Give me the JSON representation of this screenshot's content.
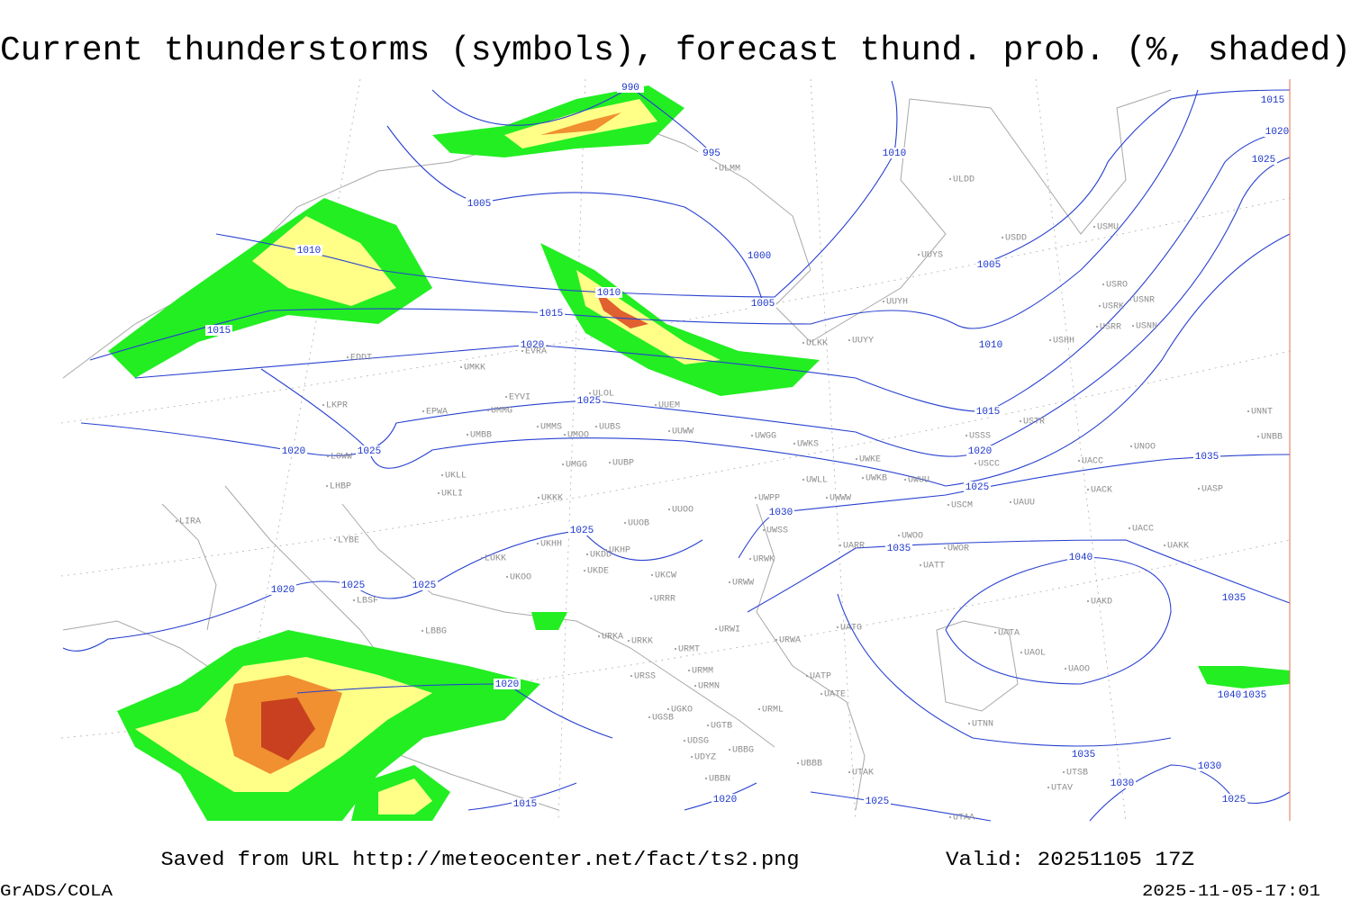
{
  "title": "Current thunderstorms (symbols), forecast thund. prob. (%, shaded)",
  "footer": {
    "source": "Saved from URL http://meteocenter.net/fact/ts2.png",
    "valid": "Valid: 20251105 17Z",
    "software": "GrADS/COLA",
    "timestamp": "2025-11-05-17:01"
  },
  "isobar_labels": [
    "990",
    "995",
    "1005",
    "1010",
    "1000",
    "1005",
    "1010",
    "1015",
    "1015",
    "1020",
    "1010",
    "1005",
    "1010",
    "1015",
    "1020",
    "1025",
    "1025",
    "1020",
    "1025",
    "1030",
    "1035",
    "1040",
    "1035",
    "1035",
    "1025",
    "1025",
    "1025",
    "1020",
    "1020",
    "1015",
    "1020",
    "1025",
    "1035",
    "1030",
    "1030",
    "1025",
    "1015",
    "1020",
    "1025",
    "1040",
    "1035"
  ],
  "stations": [
    "ULMM",
    "ULDD",
    "USDD",
    "USMU",
    "UUYS",
    "UUYH",
    "USRO",
    "USNR",
    "USRK",
    "USRR",
    "USNN",
    "USHH",
    "ULKK",
    "UUYY",
    "EDDT",
    "UMKK",
    "EVRA",
    "ULOL",
    "EYVI",
    "UUEM",
    "LKPR",
    "EPWA",
    "UMMG",
    "UMMS",
    "UMOO",
    "UUBS",
    "UUWW",
    "UWGG",
    "UWKS",
    "UWKE",
    "USSS",
    "USTR",
    "UNOO",
    "UNNT",
    "UNBB",
    "UMBB",
    "LOWW",
    "USCC",
    "UACC",
    "UMGG",
    "UUBP",
    "UKLL",
    "UWLL",
    "UWKB",
    "UWUU",
    "UKLI",
    "LHBP",
    "UKKK",
    "UWWW",
    "UACK",
    "UASP",
    "USCM",
    "UAUU",
    "UWPP",
    "UUOO",
    "LIRA",
    "UUOB",
    "UWSS",
    "UWOO",
    "UACC",
    "UAKK",
    "LYBE",
    "UKHH",
    "UKHP",
    "UARR",
    "UWOR",
    "UKDD",
    "LUKK",
    "URWK",
    "UATT",
    "UKDE",
    "UKOO",
    "UKCW",
    "URWW",
    "LBSF",
    "URRR",
    "UAKD",
    "UATG",
    "LBBG",
    "URWI",
    "UATA",
    "URKA",
    "URKK",
    "URWA",
    "URMT",
    "UAOL",
    "UATP",
    "URMM",
    "URSS",
    "UAOO",
    "URMN",
    "UATE",
    "UGKO",
    "URML",
    "UGSB",
    "UTNN",
    "UGTB",
    "UDSG",
    "UBBG",
    "UDYZ",
    "UBBB",
    "UTAK",
    "UBBN",
    "UTSB",
    "UTAV",
    "UTAA"
  ]
}
